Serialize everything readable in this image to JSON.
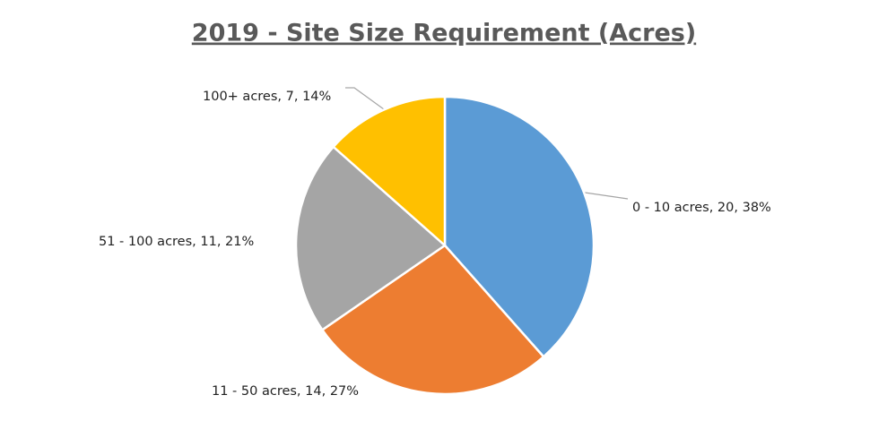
{
  "chart_data": {
    "type": "pie",
    "title": "2019 - Site Size Requirement (Acres)",
    "categories": [
      "0 - 10 acres",
      "11 - 50 acres",
      "51 - 100 acres",
      "100+ acres"
    ],
    "values": [
      20,
      14,
      11,
      7
    ],
    "value_labels": [
      "0 - 10 acres, 20, 38%",
      "11 - 50 acres, 14, 27%",
      "51 - 100 acres, 11, 21%",
      "100+ acres, 7, 14%"
    ],
    "colors": [
      "#5b9bd5",
      "#ed7d31",
      "#a5a5a5",
      "#ffc000"
    ]
  }
}
